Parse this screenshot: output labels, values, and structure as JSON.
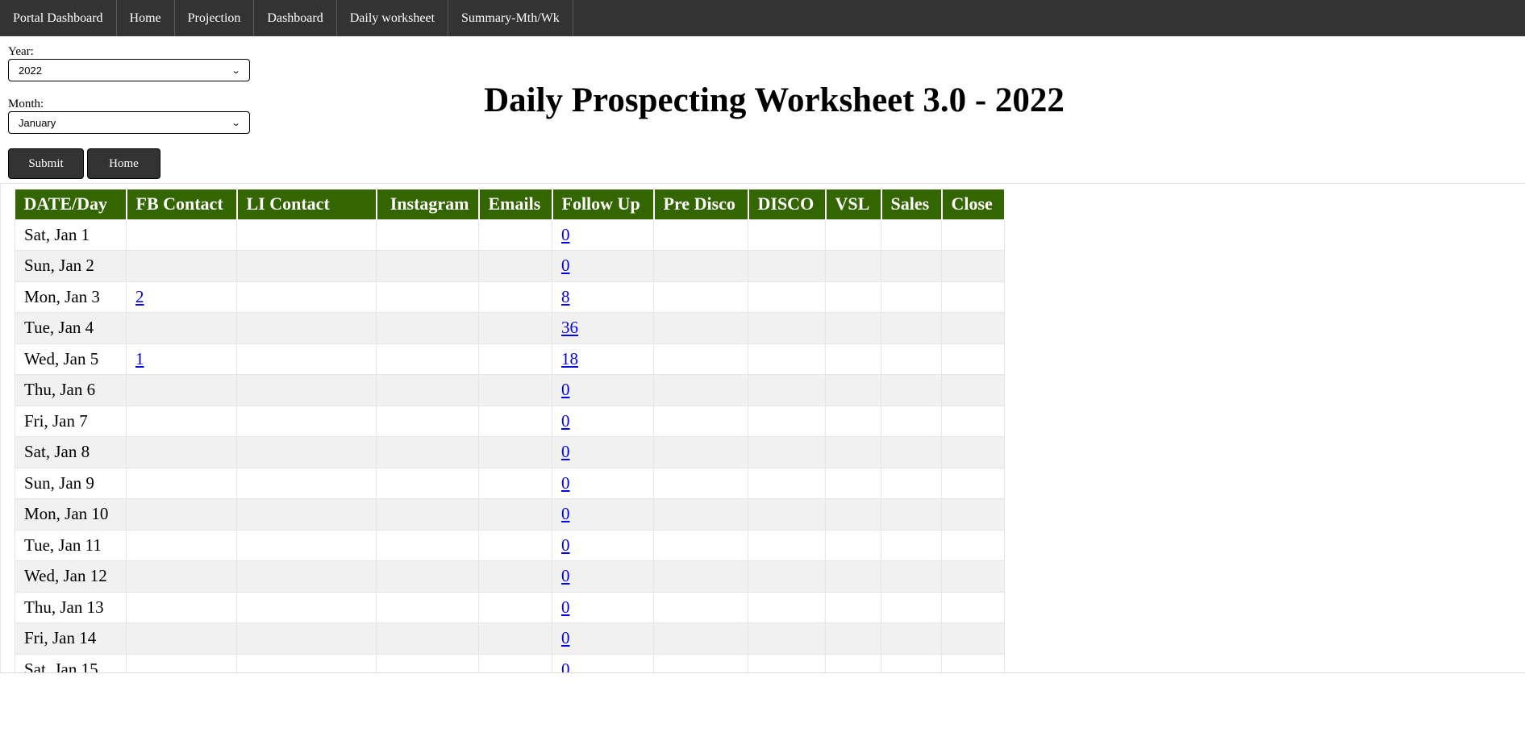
{
  "nav": {
    "items": [
      "Portal Dashboard",
      "Home",
      "Projection",
      "Dashboard",
      "Daily worksheet",
      "Summary-Mth/Wk"
    ]
  },
  "filters": {
    "year_label": "Year:",
    "year_value": "2022",
    "month_label": "Month:",
    "month_value": "January"
  },
  "buttons": {
    "submit": "Submit",
    "home": "Home"
  },
  "title": "Daily Prospecting Worksheet 3.0 - 2022",
  "table": {
    "headers": [
      "DATE/Day",
      "FB Contact",
      "LI Contact",
      "Instagram",
      "Emails",
      "Follow Up",
      "Pre Disco",
      "DISCO",
      "VSL",
      "Sales",
      "Close"
    ],
    "rows": [
      {
        "date": "Sat, Jan 1",
        "fb": "",
        "follow_up": "0"
      },
      {
        "date": "Sun, Jan 2",
        "fb": "",
        "follow_up": "0"
      },
      {
        "date": "Mon, Jan 3",
        "fb": "2",
        "follow_up": "8"
      },
      {
        "date": "Tue, Jan 4",
        "fb": "",
        "follow_up": "36"
      },
      {
        "date": "Wed, Jan 5",
        "fb": "1",
        "follow_up": "18"
      },
      {
        "date": "Thu, Jan 6",
        "fb": "",
        "follow_up": "0"
      },
      {
        "date": "Fri, Jan 7",
        "fb": "",
        "follow_up": "0"
      },
      {
        "date": "Sat, Jan 8",
        "fb": "",
        "follow_up": "0"
      },
      {
        "date": "Sun, Jan 9",
        "fb": "",
        "follow_up": "0"
      },
      {
        "date": "Mon, Jan 10",
        "fb": "",
        "follow_up": "0"
      },
      {
        "date": "Tue, Jan 11",
        "fb": "",
        "follow_up": "0"
      },
      {
        "date": "Wed, Jan 12",
        "fb": "",
        "follow_up": "0"
      },
      {
        "date": "Thu, Jan 13",
        "fb": "",
        "follow_up": "0"
      },
      {
        "date": "Fri, Jan 14",
        "fb": "",
        "follow_up": "0"
      },
      {
        "date": "Sat, Jan 15",
        "fb": "",
        "follow_up": "0"
      }
    ]
  },
  "colors": {
    "nav_bg": "#333333",
    "header_bg": "#336600",
    "link": "#0000ee",
    "row_alt": "#f1f1f1"
  }
}
